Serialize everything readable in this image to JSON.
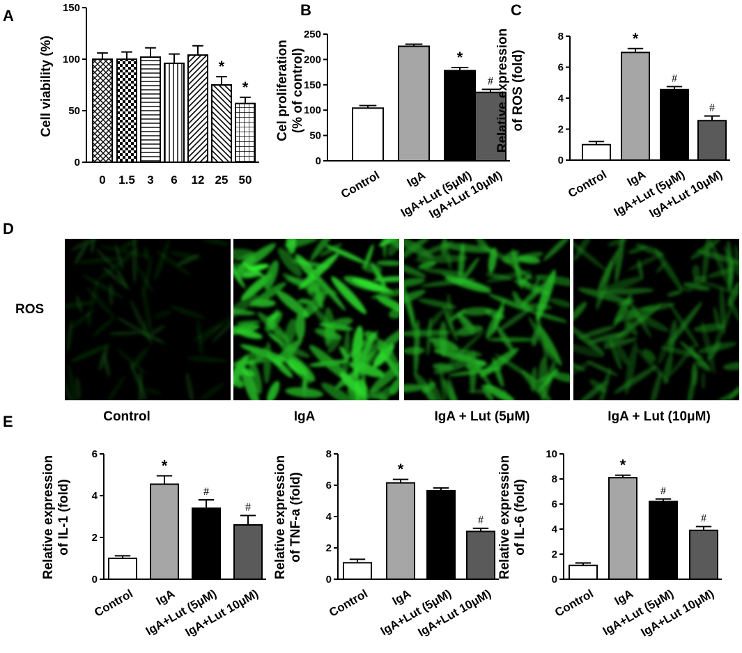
{
  "panel_labels": {
    "a": "A",
    "b": "B",
    "c": "C",
    "d": "D",
    "e": "E"
  },
  "colors": {
    "white": "#ffffff",
    "light_gray": "#a6a6a6",
    "black": "#000000",
    "dark_gray": "#5a5a5a",
    "fluor_green": "#3fe23f"
  },
  "chart_data": [
    {
      "id": "A",
      "type": "bar",
      "ylabel": "Cell viability (%)",
      "categories": [
        "0",
        "1.5",
        "3",
        "6",
        "12",
        "25",
        "50"
      ],
      "values": [
        100,
        100,
        102,
        96,
        104,
        75,
        57
      ],
      "errors": [
        6,
        7,
        9,
        9,
        9,
        8,
        6
      ],
      "annotations": [
        "",
        "",
        "",
        "",
        "",
        "*",
        "*"
      ],
      "patterns": [
        "crosshatch",
        "checker",
        "horizontal",
        "vertical",
        "diag-left",
        "diag-right",
        "grid"
      ],
      "ylim": [
        0,
        150
      ],
      "yticks": [
        0,
        50,
        100,
        150
      ]
    },
    {
      "id": "B",
      "type": "bar",
      "ylabel": [
        "Cel proliferation",
        "(% of control)"
      ],
      "categories": [
        "Control",
        "IgA",
        "IgA+Lut (5μM)",
        "IgA+Lut 10μM)"
      ],
      "values": [
        104,
        226,
        178,
        135
      ],
      "errors": [
        5,
        4,
        6,
        6
      ],
      "annotations": [
        "",
        "",
        "*",
        "#"
      ],
      "fills": [
        "white",
        "light_gray",
        "black",
        "dark_gray"
      ],
      "ylim": [
        0,
        250
      ],
      "yticks": [
        0,
        50,
        100,
        150,
        200,
        250
      ]
    },
    {
      "id": "C",
      "type": "bar",
      "ylabel": [
        "Relative expression",
        "of ROS (fold)"
      ],
      "categories": [
        "Control",
        "IgA",
        "IgA+Lut (5μM)",
        "IgA+Lut 10μM)"
      ],
      "values": [
        1.0,
        6.95,
        4.55,
        2.55
      ],
      "errors": [
        0.2,
        0.25,
        0.2,
        0.3
      ],
      "annotations": [
        "",
        "*",
        "#",
        "#"
      ],
      "fills": [
        "white",
        "light_gray",
        "black",
        "dark_gray"
      ],
      "ylim": [
        0,
        8
      ],
      "yticks": [
        0,
        2,
        4,
        6,
        8
      ]
    },
    {
      "id": "E1",
      "type": "bar",
      "ylabel": [
        "Relative expression",
        "of IL-1 (fold)"
      ],
      "categories": [
        "Control",
        "IgA",
        "IgA+Lut (5μM)",
        "IgA+Lut 10μM)"
      ],
      "values": [
        1.0,
        4.55,
        3.4,
        2.6
      ],
      "errors": [
        0.12,
        0.4,
        0.4,
        0.45
      ],
      "annotations": [
        "",
        "*",
        "#",
        "#"
      ],
      "fills": [
        "white",
        "light_gray",
        "black",
        "dark_gray"
      ],
      "ylim": [
        0,
        6
      ],
      "yticks": [
        0,
        2,
        4,
        6
      ]
    },
    {
      "id": "E2",
      "type": "bar",
      "ylabel": [
        "Relative expression",
        "of TNF-a (fold)"
      ],
      "categories": [
        "Control",
        "IgA",
        "IgA+Lut (5μM)",
        "IgA+Lut 10μM)"
      ],
      "values": [
        1.05,
        6.15,
        5.65,
        3.05
      ],
      "errors": [
        0.22,
        0.22,
        0.18,
        0.2
      ],
      "annotations": [
        "",
        "*",
        "",
        "#"
      ],
      "fills": [
        "white",
        "light_gray",
        "black",
        "dark_gray"
      ],
      "ylim": [
        0,
        8
      ],
      "yticks": [
        0,
        2,
        4,
        6,
        8
      ]
    },
    {
      "id": "E3",
      "type": "bar",
      "ylabel": [
        "Relative expression",
        "of IL-6 (fold)"
      ],
      "categories": [
        "Control",
        "IgA",
        "IgA+Lut (5μM)",
        "IgA+Lut 10μM)"
      ],
      "values": [
        1.1,
        8.1,
        6.2,
        3.9
      ],
      "errors": [
        0.2,
        0.2,
        0.2,
        0.3
      ],
      "annotations": [
        "",
        "*",
        "#",
        "#"
      ],
      "fills": [
        "white",
        "light_gray",
        "black",
        "dark_gray"
      ],
      "ylim": [
        0,
        10
      ],
      "yticks": [
        0,
        2,
        4,
        6,
        8,
        10
      ]
    }
  ],
  "microscopy": {
    "row_label": "ROS",
    "images": [
      {
        "caption": "Control",
        "intensity": 0.22
      },
      {
        "caption": "IgA",
        "intensity": 0.95
      },
      {
        "caption": "IgA + Lut (5μM)",
        "intensity": 0.75
      },
      {
        "caption": "IgA + Lut (10μM)",
        "intensity": 0.55
      }
    ]
  }
}
